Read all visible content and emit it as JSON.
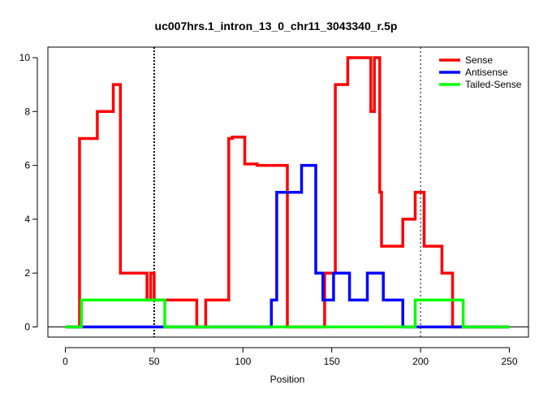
{
  "chart_data": {
    "type": "line",
    "title": "uc007hrs.1_intron_13_0_chr11_3043340_r.5p",
    "xlabel": "Position",
    "ylabel": "",
    "xlim": [
      0,
      250
    ],
    "ylim": [
      0,
      10
    ],
    "xticks": [
      0,
      50,
      100,
      150,
      200,
      250
    ],
    "yticks": [
      0,
      2,
      4,
      6,
      8,
      10
    ],
    "vlines": [
      50,
      200
    ],
    "legend_position": "top-right",
    "series": [
      {
        "name": "Sense",
        "color": "#ff0000",
        "x": [
          0,
          8,
          8,
          18,
          18,
          27,
          27,
          31,
          31,
          46,
          46,
          48,
          48,
          50,
          50,
          74,
          74,
          79,
          79,
          92,
          92,
          94,
          94,
          101,
          101,
          108,
          108,
          125,
          125,
          146,
          146,
          152,
          152,
          159,
          159,
          172,
          172,
          174,
          174,
          177,
          177,
          178,
          178,
          190,
          190,
          197,
          197,
          202,
          202,
          212,
          212,
          218,
          218,
          220,
          220,
          250
        ],
        "y": [
          0,
          0,
          7,
          7,
          8,
          8,
          9,
          9,
          2,
          2,
          1,
          1,
          2,
          2,
          1,
          1,
          0,
          0,
          1,
          1,
          7,
          7,
          7.05,
          7.05,
          6.05,
          6.05,
          6,
          6,
          0,
          0,
          2,
          2,
          9,
          9,
          10,
          10,
          8,
          8,
          10,
          10,
          5,
          5,
          3,
          3,
          4,
          4,
          5,
          5,
          3,
          3,
          2,
          2,
          0,
          0,
          0,
          0
        ]
      },
      {
        "name": "Antisense",
        "color": "#0000ff",
        "x": [
          0,
          116,
          116,
          119,
          119,
          133,
          133,
          141,
          141,
          145,
          145,
          151,
          151,
          160,
          160,
          170,
          170,
          179,
          179,
          190,
          190,
          250
        ],
        "y": [
          0,
          0,
          1,
          1,
          5,
          5,
          6,
          6,
          2,
          2,
          1,
          1,
          2,
          2,
          1,
          1,
          2,
          2,
          1,
          1,
          0,
          0
        ]
      },
      {
        "name": "Tailed-Sense",
        "color": "#00ff00",
        "x": [
          0,
          9,
          9,
          56,
          56,
          197,
          197,
          224,
          224,
          250
        ],
        "y": [
          0,
          0,
          1,
          1,
          0,
          0,
          1,
          1,
          0,
          0
        ]
      }
    ]
  }
}
